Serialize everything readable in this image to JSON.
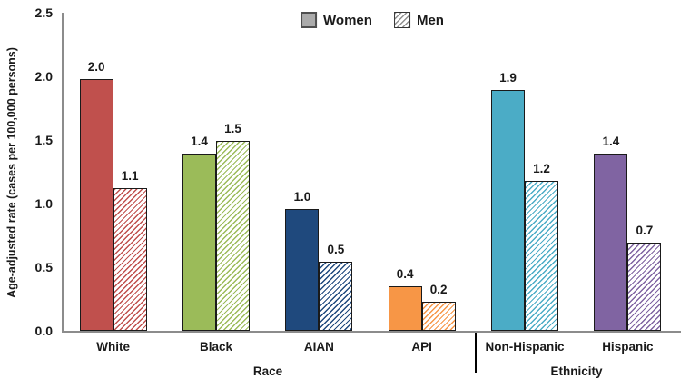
{
  "chart_data": {
    "type": "bar",
    "title": "",
    "ylabel": "Age-adjusted rate (cases per 100,000 persons)",
    "ylim": [
      0,
      2.5
    ],
    "yticks": [
      "0.0",
      "0.5",
      "1.0",
      "1.5",
      "2.0",
      "2.5"
    ],
    "grid": "off",
    "legend": {
      "position": "top-center",
      "entries": [
        {
          "label": "Women",
          "fill": "solid",
          "swatch_color": "#ABABAB"
        },
        {
          "label": "Men",
          "fill": "hatched",
          "swatch_color": "#8F8F8F"
        }
      ]
    },
    "categories": [
      "White",
      "Black",
      "AIAN",
      "API",
      "Non-Hispanic",
      "Hispanic"
    ],
    "series": [
      {
        "name": "Women",
        "values": [
          2.0,
          1.4,
          1.0,
          0.4,
          1.9,
          1.4
        ]
      },
      {
        "name": "Men",
        "values": [
          1.1,
          1.5,
          0.5,
          0.2,
          1.2,
          0.7
        ]
      }
    ],
    "sections": [
      {
        "label": "Race",
        "categories": [
          "White",
          "Black",
          "AIAN",
          "API"
        ]
      },
      {
        "label": "Ethnicity",
        "categories": [
          "Non-Hispanic",
          "Hispanic"
        ]
      }
    ],
    "groups": [
      {
        "category": "White",
        "color": "#C0504D",
        "women_value": 2.0,
        "men_value": 1.1,
        "women_label": "2.0",
        "men_label": "1.1",
        "women_plotted": 1.98,
        "men_plotted": 1.12
      },
      {
        "category": "Black",
        "color": "#9BBB59",
        "women_value": 1.4,
        "men_value": 1.5,
        "women_label": "1.4",
        "men_label": "1.5",
        "women_plotted": 1.39,
        "men_plotted": 1.49
      },
      {
        "category": "AIAN",
        "color": "#1F497D",
        "women_value": 1.0,
        "men_value": 0.5,
        "women_label": "1.0",
        "men_label": "0.5",
        "women_plotted": 0.96,
        "men_plotted": 0.54
      },
      {
        "category": "API",
        "color": "#F79646",
        "women_value": 0.4,
        "men_value": 0.2,
        "women_label": "0.4",
        "men_label": "0.2",
        "women_plotted": 0.35,
        "men_plotted": 0.23
      },
      {
        "category": "Non-Hispanic",
        "color": "#4BACC6",
        "women_value": 1.9,
        "men_value": 1.2,
        "women_label": "1.9",
        "men_label": "1.2",
        "women_plotted": 1.89,
        "men_plotted": 1.18
      },
      {
        "category": "Hispanic",
        "color": "#8064A2",
        "women_value": 1.4,
        "men_value": 0.7,
        "women_label": "1.4",
        "men_label": "0.7",
        "women_plotted": 1.39,
        "men_plotted": 0.69
      }
    ],
    "axis_color": "#8C8C8C",
    "divider_color": "#000000"
  }
}
